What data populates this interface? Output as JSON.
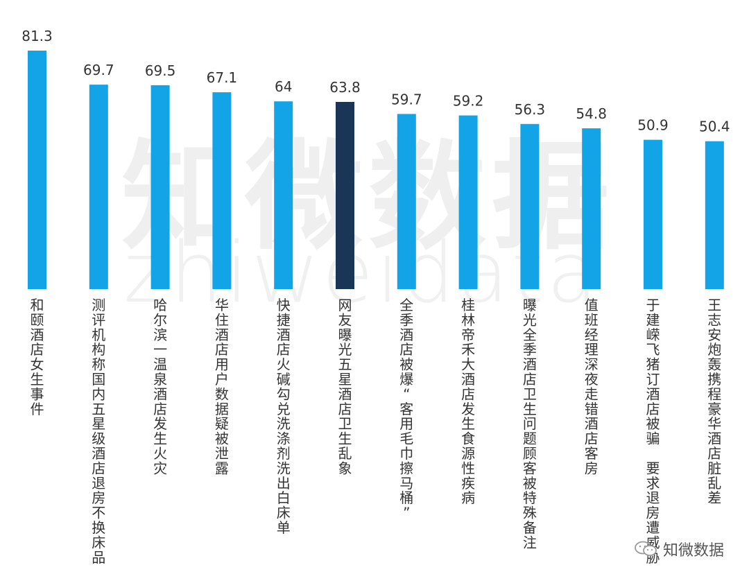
{
  "watermark": {
    "cn": "知微数据",
    "en": "zhiweidata"
  },
  "logo": {
    "text": "知微数据",
    "icon": "wechat-icon"
  },
  "colors": {
    "bar": "#12a4e6",
    "highlight": "#1a3657",
    "text": "#333333"
  },
  "chart_data": {
    "type": "bar",
    "categories": [
      "和颐酒店女生事件",
      "测评机构称国内五星级酒店退房不换床品",
      "哈尔滨一温泉酒店发生火灾",
      "华住酒店用户数据疑被泄露",
      "快捷酒店火碱勾兑洗涤剂洗出白床单",
      "网友曝光五星酒店卫生乱象",
      "全季酒店被爆“客用毛巾擦马桶”",
      "桂林帝禾大酒店发生食源性疾病",
      "曝光全季酒店卫生问题顾客被特殊备注",
      "值班经理深夜走错酒店客房",
      "于建嵘飞猪订酒店被骗 要求退房遭威胁",
      "王志安炮轰携程豪华酒店脏乱差"
    ],
    "values": [
      81.3,
      69.7,
      69.5,
      67.1,
      64,
      63.8,
      59.7,
      59.2,
      56.3,
      54.8,
      50.9,
      50.4
    ],
    "highlight_index": 5,
    "ylim": [
      0,
      81.3
    ],
    "grid": false,
    "legend": "none"
  }
}
